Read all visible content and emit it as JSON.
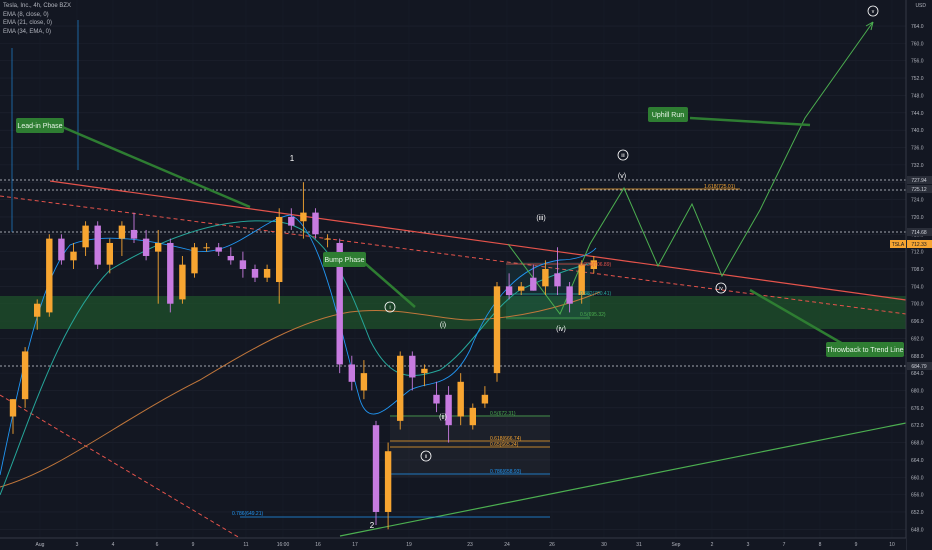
{
  "legend": {
    "title": "Tesla, Inc., 4h, Cboe BZX",
    "ema1": "EMA (8, close, 0)",
    "ema2": "EMA (21, close, 0)",
    "ema3": "EMA (34, EMA, 0)"
  },
  "currency": "USD",
  "colors": {
    "background": "#131722",
    "up": "#f7a531",
    "down": "#c77be0",
    "ema8": "#2196f3",
    "ema21": "#26a69a",
    "ema34": "#c0763b",
    "channel": "#1e4d2b",
    "trend_red": "#e5534b",
    "trend_green": "#4caf50",
    "label_green": "#2e7d32"
  },
  "annotations": {
    "lead_in": "Lead-in Phase",
    "bump": "Bump Phase",
    "uphill": "Uphill Run",
    "throwback": "Throwback to Trend Line",
    "wave_1": "1",
    "wave_2": "2",
    "wave_iii_circle": "iii",
    "wave_v_circle": "v",
    "wave_v": "(v)",
    "wave_iii": "(iii)",
    "wave_iv": "(iv)",
    "wave_iv_circle": "iv",
    "wave_i": "(i)",
    "wave_ii": "(ii)",
    "wave_i_circle": "i",
    "wave_ii_circle": "ii"
  },
  "fib_labels": {
    "f1618": "1.618(725.01)",
    "f236": "0.236(706.89)",
    "f382": "0.382(700.41)",
    "f5b": "0.5(695.32)",
    "f5a": "0.5(672.31)",
    "f618": "0.618(666.74)",
    "f65": "0.65(665.24)",
    "f786a": "0.786(658.93)",
    "f786b": "0.786(649.21)"
  },
  "price_tags": {
    "tsla_label": "TSLA",
    "tsla_price": "712.33",
    "tag1": "727.94",
    "tag2": "725.12",
    "tag3": "714.68",
    "tag4": "684.79"
  },
  "chart_data": {
    "type": "candlestick",
    "title": "Tesla, Inc., 4h, Cboe BZX",
    "ylim": [
      646,
      770
    ],
    "y_ticks": [
      648,
      652,
      656,
      660,
      664,
      668,
      672,
      676,
      680,
      684,
      688,
      692,
      696,
      700,
      704,
      708,
      712,
      716,
      720,
      724,
      728,
      732,
      736,
      740,
      744,
      748,
      752,
      756,
      760,
      764
    ],
    "x_ticks": [
      "Aug",
      "3",
      "4",
      "6",
      "9",
      "11",
      "16:00",
      "16",
      "17",
      "19",
      "23",
      "24",
      "26",
      "30",
      "31",
      "Sep",
      "2",
      "3",
      "7",
      "8",
      "9",
      "10"
    ],
    "candles": [
      {
        "o": 674,
        "h": 678,
        "l": 670,
        "c": 678
      },
      {
        "o": 678,
        "h": 690,
        "l": 676,
        "c": 689
      },
      {
        "o": 697,
        "h": 701,
        "l": 694,
        "c": 700
      },
      {
        "o": 698,
        "h": 716,
        "l": 697,
        "c": 715
      },
      {
        "o": 715,
        "h": 716,
        "l": 709,
        "c": 710
      },
      {
        "o": 710,
        "h": 714,
        "l": 708,
        "c": 712
      },
      {
        "o": 713,
        "h": 719,
        "l": 711,
        "c": 718
      },
      {
        "o": 718,
        "h": 719,
        "l": 708,
        "c": 709
      },
      {
        "o": 709,
        "h": 715,
        "l": 707,
        "c": 714
      },
      {
        "o": 715,
        "h": 719,
        "l": 711,
        "c": 718
      },
      {
        "o": 717,
        "h": 721,
        "l": 714,
        "c": 715
      },
      {
        "o": 715,
        "h": 717,
        "l": 710,
        "c": 711
      },
      {
        "o": 712,
        "h": 717,
        "l": 700,
        "c": 714
      },
      {
        "o": 714,
        "h": 715,
        "l": 698,
        "c": 700
      },
      {
        "o": 701,
        "h": 711,
        "l": 700,
        "c": 709
      },
      {
        "o": 707,
        "h": 714,
        "l": 706,
        "c": 713
      },
      {
        "o": 713,
        "h": 714,
        "l": 712,
        "c": 713
      },
      {
        "o": 713,
        "h": 714,
        "l": 711,
        "c": 712
      },
      {
        "o": 711,
        "h": 713,
        "l": 709,
        "c": 710
      },
      {
        "o": 710,
        "h": 712,
        "l": 706,
        "c": 708
      },
      {
        "o": 708,
        "h": 709,
        "l": 705,
        "c": 706
      },
      {
        "o": 706,
        "h": 709,
        "l": 705,
        "c": 708
      },
      {
        "o": 705,
        "h": 722,
        "l": 700,
        "c": 720
      },
      {
        "o": 720,
        "h": 722,
        "l": 717,
        "c": 718
      },
      {
        "o": 719,
        "h": 728,
        "l": 715,
        "c": 721
      },
      {
        "o": 721,
        "h": 722,
        "l": 715,
        "c": 716
      },
      {
        "o": 715,
        "h": 716,
        "l": 713,
        "c": 715
      },
      {
        "o": 714,
        "h": 715,
        "l": 684,
        "c": 686
      },
      {
        "o": 686,
        "h": 688,
        "l": 680,
        "c": 682
      },
      {
        "o": 680,
        "h": 687,
        "l": 678,
        "c": 684
      },
      {
        "o": 672,
        "h": 673,
        "l": 649,
        "c": 652
      },
      {
        "o": 652,
        "h": 668,
        "l": 648,
        "c": 666
      },
      {
        "o": 673,
        "h": 689,
        "l": 671,
        "c": 688
      },
      {
        "o": 688,
        "h": 689,
        "l": 680,
        "c": 683
      },
      {
        "o": 684,
        "h": 686,
        "l": 681,
        "c": 685
      },
      {
        "o": 679,
        "h": 682,
        "l": 675,
        "c": 677
      },
      {
        "o": 679,
        "h": 681,
        "l": 668,
        "c": 672
      },
      {
        "o": 674,
        "h": 684,
        "l": 672,
        "c": 682
      },
      {
        "o": 672,
        "h": 677,
        "l": 671,
        "c": 676
      },
      {
        "o": 677,
        "h": 681,
        "l": 676,
        "c": 679
      },
      {
        "o": 684,
        "h": 705,
        "l": 682,
        "c": 704
      },
      {
        "o": 704,
        "h": 707,
        "l": 701,
        "c": 702
      },
      {
        "o": 703,
        "h": 705,
        "l": 702,
        "c": 704
      },
      {
        "o": 706,
        "h": 709,
        "l": 703,
        "c": 703
      },
      {
        "o": 704,
        "h": 710,
        "l": 702,
        "c": 708
      },
      {
        "o": 707,
        "h": 713,
        "l": 702,
        "c": 704
      },
      {
        "o": 704,
        "h": 705,
        "l": 698,
        "c": 700
      },
      {
        "o": 702,
        "h": 710,
        "l": 700,
        "c": 709
      },
      {
        "o": 708,
        "h": 711,
        "l": 707,
        "c": 710
      }
    ]
  }
}
